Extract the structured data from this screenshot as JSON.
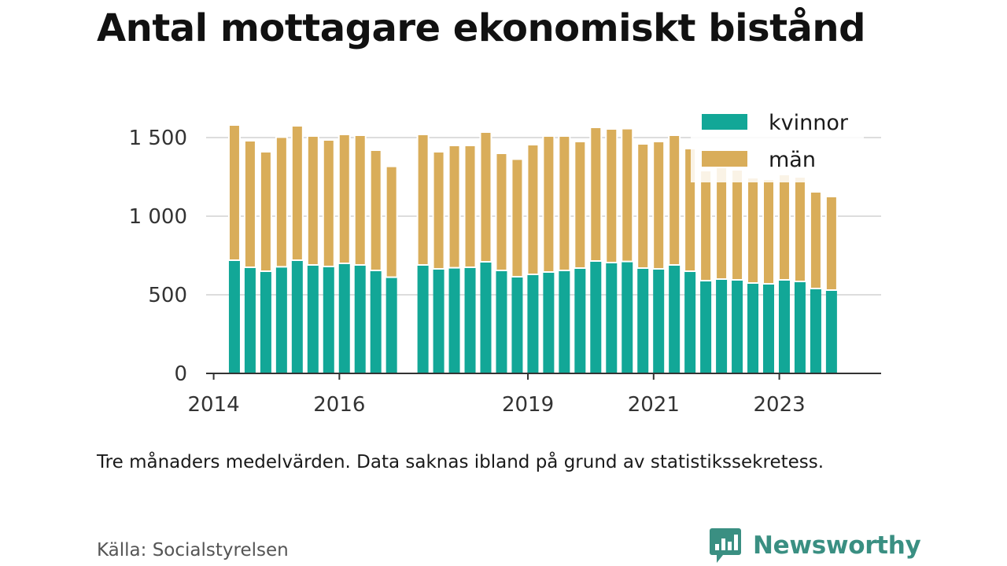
{
  "chart_data": {
    "type": "bar",
    "stacked": true,
    "title": "Antal mottagare ekonomiskt bistånd",
    "xlabel": "",
    "ylabel": "",
    "ylim": [
      0,
      1700
    ],
    "yticks": [
      0,
      500,
      1000,
      1500
    ],
    "ytick_labels": [
      "0",
      "500",
      "1 000",
      "1 500"
    ],
    "xlim": [
      2013.88,
      2024.62
    ],
    "xticks": [
      2014,
      2016,
      2019,
      2021,
      2023
    ],
    "xtick_labels": [
      "2014",
      "2016",
      "2019",
      "2021",
      "2023"
    ],
    "grid": "horizontal",
    "legend_position": "top-right",
    "x": [
      2014.33,
      2014.58,
      2014.83,
      2015.08,
      2015.33,
      2015.58,
      2015.83,
      2016.08,
      2016.33,
      2016.58,
      2016.83,
      2017.33,
      2017.58,
      2017.83,
      2018.08,
      2018.33,
      2018.58,
      2018.83,
      2019.08,
      2019.33,
      2019.58,
      2019.83,
      2020.08,
      2020.33,
      2020.58,
      2020.83,
      2021.08,
      2021.33,
      2021.58,
      2021.83,
      2022.08,
      2022.33,
      2022.58,
      2022.83,
      2023.08,
      2023.33,
      2023.58,
      2023.83
    ],
    "series": [
      {
        "name": "kvinnor",
        "color": "#12a797",
        "values": [
          720,
          675,
          650,
          678,
          720,
          690,
          680,
          700,
          690,
          655,
          612,
          690,
          665,
          672,
          675,
          710,
          655,
          615,
          630,
          645,
          655,
          670,
          715,
          705,
          712,
          670,
          665,
          690,
          650,
          590,
          600,
          595,
          575,
          570,
          595,
          585,
          540,
          530
        ]
      },
      {
        "name": "män",
        "color": "#d9ad5a",
        "values": [
          860,
          805,
          760,
          825,
          855,
          820,
          805,
          820,
          825,
          765,
          705,
          830,
          745,
          778,
          775,
          825,
          745,
          748,
          825,
          865,
          855,
          805,
          850,
          850,
          845,
          790,
          810,
          825,
          780,
          700,
          710,
          700,
          670,
          665,
          670,
          665,
          615,
          595
        ]
      }
    ]
  },
  "caption": "Tre månaders medelvärden. Data saknas ibland på grund av statistikssekretess.",
  "source": "Källa: Socialstyrelsen",
  "brand": {
    "name": "Newsworthy",
    "color": "#3a8f82"
  }
}
